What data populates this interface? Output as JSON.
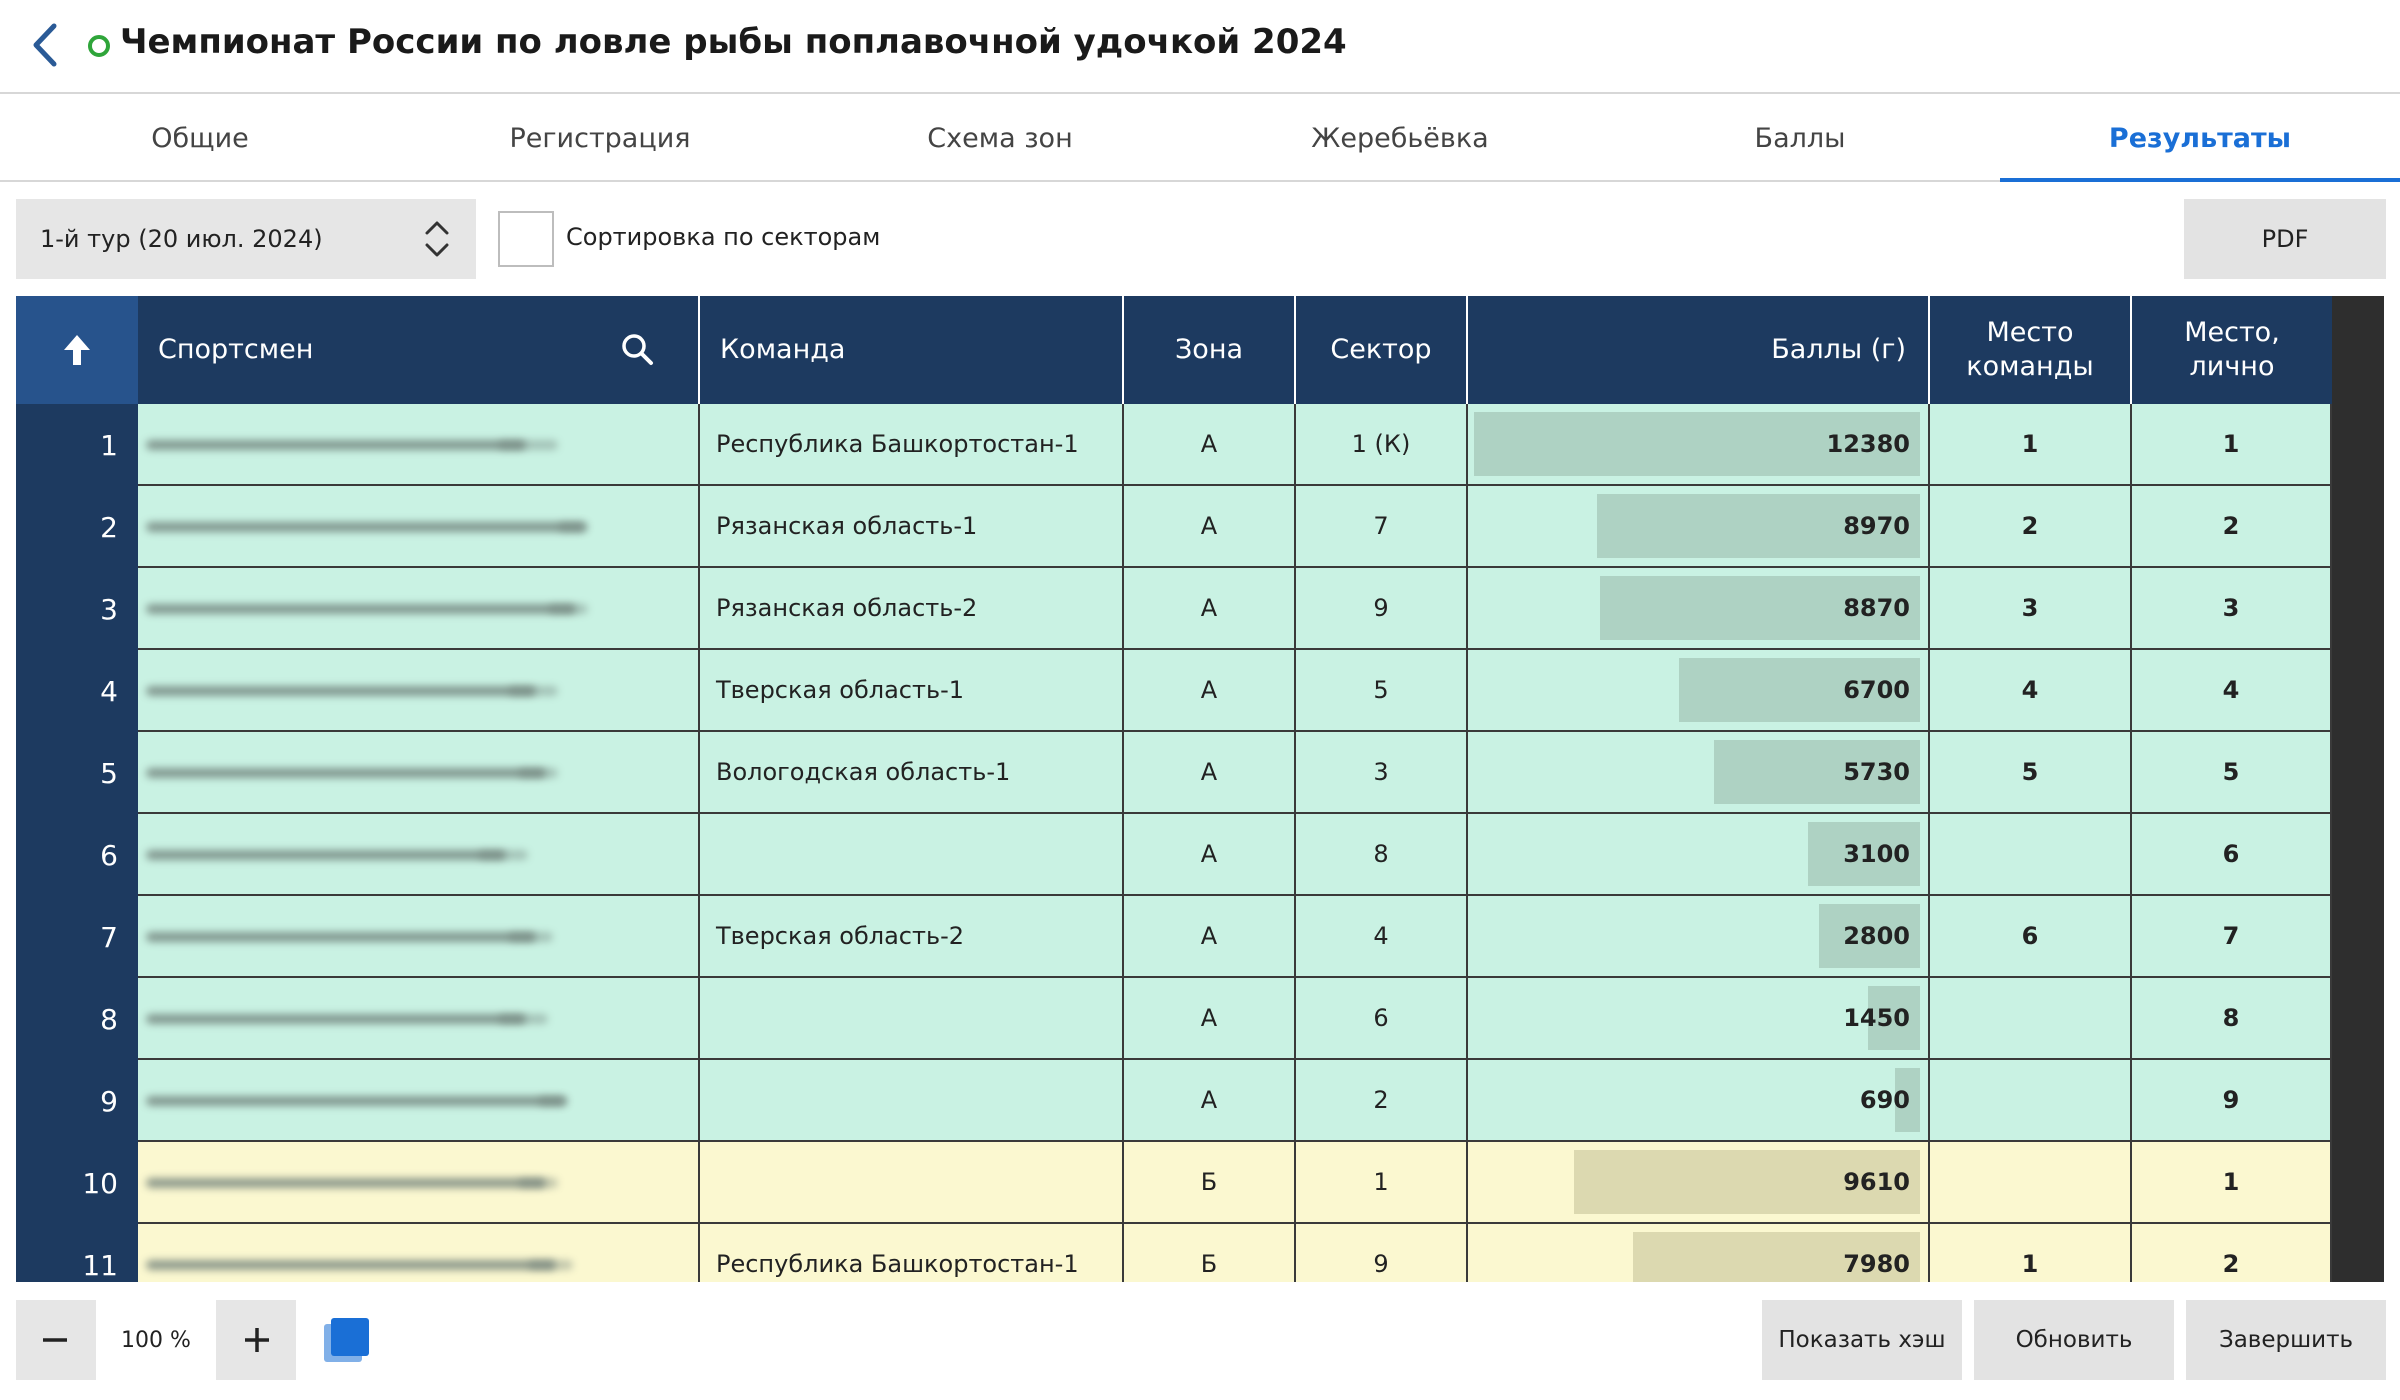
{
  "header": {
    "title": "Чемпионат России по ловле рыбы поплавочной удочкой 2024",
    "status_color": "#2fa53a",
    "icons": {
      "back": "chevron-left-icon",
      "status": "status-circle-icon"
    }
  },
  "tabs": [
    {
      "label": "Общие",
      "active": false
    },
    {
      "label": "Регистрация",
      "active": false
    },
    {
      "label": "Схема зон",
      "active": false
    },
    {
      "label": "Жеребьёвка",
      "active": false
    },
    {
      "label": "Баллы",
      "active": false
    },
    {
      "label": "Результаты",
      "active": true
    }
  ],
  "toolbar": {
    "round_select": "1-й тур (20 июл. 2024)",
    "sort_by_sectors_label": "Сортировка по секторам",
    "sort_by_sectors_checked": false,
    "pdf_label": "PDF"
  },
  "table": {
    "columns": {
      "athlete": "Спортсмен",
      "team": "Команда",
      "zone": "Зона",
      "sector": "Сектор",
      "score": "Баллы (г)",
      "team_place_line1": "Место",
      "team_place_line2": "команды",
      "personal_place_line1": "Место,",
      "personal_place_line2": "лично"
    },
    "max_score": 12380,
    "rows": [
      {
        "n": "1",
        "team": "Республика Башкортостан-1",
        "zone": "А",
        "sector": "1 (К)",
        "score": 12380,
        "score_text": "12380",
        "team_place": "1",
        "place": "1",
        "group": "green"
      },
      {
        "n": "2",
        "team": "Рязанская область-1",
        "zone": "А",
        "sector": "7",
        "score": 8970,
        "score_text": "8970",
        "team_place": "2",
        "place": "2",
        "group": "green"
      },
      {
        "n": "3",
        "team": "Рязанская область-2",
        "zone": "А",
        "sector": "9",
        "score": 8870,
        "score_text": "8870",
        "team_place": "3",
        "place": "3",
        "group": "green"
      },
      {
        "n": "4",
        "team": "Тверская область-1",
        "zone": "А",
        "sector": "5",
        "score": 6700,
        "score_text": "6700",
        "team_place": "4",
        "place": "4",
        "group": "green"
      },
      {
        "n": "5",
        "team": "Вологодская область-1",
        "zone": "А",
        "sector": "3",
        "score": 5730,
        "score_text": "5730",
        "team_place": "5",
        "place": "5",
        "group": "green"
      },
      {
        "n": "6",
        "team": "",
        "zone": "А",
        "sector": "8",
        "score": 3100,
        "score_text": "3100",
        "team_place": "",
        "place": "6",
        "group": "green"
      },
      {
        "n": "7",
        "team": "Тверская область-2",
        "zone": "А",
        "sector": "4",
        "score": 2800,
        "score_text": "2800",
        "team_place": "6",
        "place": "7",
        "group": "green"
      },
      {
        "n": "8",
        "team": "",
        "zone": "А",
        "sector": "6",
        "score": 1450,
        "score_text": "1450",
        "team_place": "",
        "place": "8",
        "group": "green"
      },
      {
        "n": "9",
        "team": "",
        "zone": "А",
        "sector": "2",
        "score": 690,
        "score_text": "690",
        "team_place": "",
        "place": "9",
        "group": "green"
      },
      {
        "n": "10",
        "team": "",
        "zone": "Б",
        "sector": "1",
        "score": 9610,
        "score_text": "9610",
        "team_place": "",
        "place": "1",
        "group": "yellow"
      },
      {
        "n": "11",
        "team": "Республика Башкортостан-1",
        "zone": "Б",
        "sector": "9",
        "score": 7980,
        "score_text": "7980",
        "team_place": "1",
        "place": "2",
        "group": "yellow"
      }
    ],
    "colors": {
      "zone_a": "#c9f2e3",
      "zone_b": "#fbf8d0",
      "header": "#1d3a60"
    }
  },
  "footer": {
    "zoom": "100 %",
    "show_hash_label": "Показать хэш",
    "refresh_label": "Обновить",
    "finish_label": "Завершить"
  }
}
